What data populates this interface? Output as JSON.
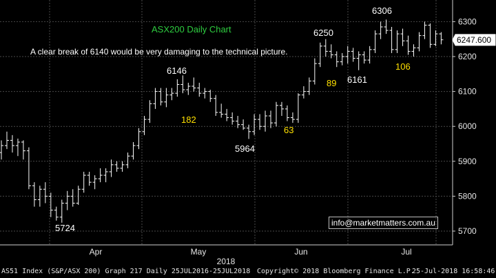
{
  "footer": {
    "left": "AS51 Index (S&P/ASX 200) Graph 217  Daily 25JUL2016-25JUL2018",
    "center": "Copyright© 2018 Bloomberg Finance L.P.",
    "right": "25-Jul-2018 16:58:46"
  },
  "info_box": "info@marketmatters.com.au",
  "colors": {
    "background": "#000000",
    "grid": "#4a4a4a",
    "bars": "#ffffff",
    "title": "#2ecc40",
    "annotation_yellow": "#ffe000",
    "text": "#ffffff"
  },
  "chart_data": {
    "type": "ohlc",
    "title": "ASX200 Daily Chart",
    "subtitle": "A clear break of 6140 would be very damaging to the technical picture.",
    "xlabel": "2018",
    "month_labels": [
      "Apr",
      "May",
      "Jun",
      "Jul"
    ],
    "ylim": [
      5650,
      6350
    ],
    "yticks": [
      5700,
      5800,
      5900,
      6000,
      6100,
      6200,
      6300
    ],
    "last_price": "6247.600",
    "grid": true,
    "annotations": [
      {
        "text": "6306",
        "color": "white",
        "price": 6306
      },
      {
        "text": "6250",
        "color": "white",
        "price": 6250
      },
      {
        "text": "6146",
        "color": "white",
        "price": 6146
      },
      {
        "text": "6161",
        "color": "white",
        "price": 6161
      },
      {
        "text": "5964",
        "color": "white",
        "price": 5964
      },
      {
        "text": "5724",
        "color": "white",
        "price": 5724
      },
      {
        "text": "182",
        "color": "yellow"
      },
      {
        "text": "63",
        "color": "yellow"
      },
      {
        "text": "89",
        "color": "yellow"
      },
      {
        "text": "106",
        "color": "yellow"
      }
    ],
    "bars": [
      {
        "o": 5925,
        "h": 5960,
        "l": 5905,
        "c": 5945
      },
      {
        "o": 5945,
        "h": 5985,
        "l": 5935,
        "c": 5960
      },
      {
        "o": 5960,
        "h": 5975,
        "l": 5925,
        "c": 5945
      },
      {
        "o": 5945,
        "h": 5965,
        "l": 5915,
        "c": 5955
      },
      {
        "o": 5955,
        "h": 5960,
        "l": 5905,
        "c": 5930
      },
      {
        "o": 5930,
        "h": 5940,
        "l": 5820,
        "c": 5830
      },
      {
        "o": 5830,
        "h": 5840,
        "l": 5770,
        "c": 5790
      },
      {
        "o": 5790,
        "h": 5830,
        "l": 5770,
        "c": 5820
      },
      {
        "o": 5820,
        "h": 5840,
        "l": 5780,
        "c": 5800
      },
      {
        "o": 5800,
        "h": 5810,
        "l": 5740,
        "c": 5760
      },
      {
        "o": 5760,
        "h": 5770,
        "l": 5730,
        "c": 5740
      },
      {
        "o": 5740,
        "h": 5790,
        "l": 5724,
        "c": 5780
      },
      {
        "o": 5780,
        "h": 5815,
        "l": 5760,
        "c": 5800
      },
      {
        "o": 5800,
        "h": 5820,
        "l": 5770,
        "c": 5780
      },
      {
        "o": 5780,
        "h": 5830,
        "l": 5775,
        "c": 5820
      },
      {
        "o": 5820,
        "h": 5870,
        "l": 5810,
        "c": 5860
      },
      {
        "o": 5860,
        "h": 5870,
        "l": 5830,
        "c": 5840
      },
      {
        "o": 5840,
        "h": 5860,
        "l": 5820,
        "c": 5850
      },
      {
        "o": 5850,
        "h": 5880,
        "l": 5840,
        "c": 5860
      },
      {
        "o": 5860,
        "h": 5880,
        "l": 5840,
        "c": 5870
      },
      {
        "o": 5870,
        "h": 5905,
        "l": 5855,
        "c": 5890
      },
      {
        "o": 5890,
        "h": 5900,
        "l": 5870,
        "c": 5880
      },
      {
        "o": 5880,
        "h": 5900,
        "l": 5870,
        "c": 5890
      },
      {
        "o": 5890,
        "h": 5925,
        "l": 5880,
        "c": 5915
      },
      {
        "o": 5915,
        "h": 5955,
        "l": 5905,
        "c": 5945
      },
      {
        "o": 5945,
        "h": 5995,
        "l": 5935,
        "c": 5985
      },
      {
        "o": 5985,
        "h": 6030,
        "l": 5975,
        "c": 6020
      },
      {
        "o": 6020,
        "h": 6075,
        "l": 6010,
        "c": 6065
      },
      {
        "o": 6065,
        "h": 6110,
        "l": 6050,
        "c": 6100
      },
      {
        "o": 6100,
        "h": 6110,
        "l": 6060,
        "c": 6070
      },
      {
        "o": 6070,
        "h": 6110,
        "l": 6055,
        "c": 6090
      },
      {
        "o": 6090,
        "h": 6110,
        "l": 6075,
        "c": 6095
      },
      {
        "o": 6095,
        "h": 6135,
        "l": 6085,
        "c": 6120
      },
      {
        "o": 6120,
        "h": 6146,
        "l": 6095,
        "c": 6105
      },
      {
        "o": 6105,
        "h": 6125,
        "l": 6090,
        "c": 6115
      },
      {
        "o": 6115,
        "h": 6140,
        "l": 6100,
        "c": 6110
      },
      {
        "o": 6110,
        "h": 6125,
        "l": 6085,
        "c": 6095
      },
      {
        "o": 6095,
        "h": 6110,
        "l": 6080,
        "c": 6100
      },
      {
        "o": 6100,
        "h": 6105,
        "l": 6070,
        "c": 6080
      },
      {
        "o": 6080,
        "h": 6090,
        "l": 6030,
        "c": 6040
      },
      {
        "o": 6040,
        "h": 6065,
        "l": 6025,
        "c": 6035
      },
      {
        "o": 6035,
        "h": 6050,
        "l": 6015,
        "c": 6025
      },
      {
        "o": 6025,
        "h": 6040,
        "l": 6005,
        "c": 6015
      },
      {
        "o": 6015,
        "h": 6030,
        "l": 5995,
        "c": 6005
      },
      {
        "o": 6005,
        "h": 6020,
        "l": 5990,
        "c": 5995
      },
      {
        "o": 5995,
        "h": 6005,
        "l": 5964,
        "c": 5985
      },
      {
        "o": 5985,
        "h": 6035,
        "l": 5975,
        "c": 6020
      },
      {
        "o": 6020,
        "h": 6035,
        "l": 5990,
        "c": 6000
      },
      {
        "o": 6000,
        "h": 6045,
        "l": 5985,
        "c": 6030
      },
      {
        "o": 6030,
        "h": 6045,
        "l": 5995,
        "c": 6010
      },
      {
        "o": 6010,
        "h": 6070,
        "l": 6000,
        "c": 6060
      },
      {
        "o": 6060,
        "h": 6070,
        "l": 6030,
        "c": 6050
      },
      {
        "o": 6050,
        "h": 6060,
        "l": 6015,
        "c": 6025
      },
      {
        "o": 6025,
        "h": 6040,
        "l": 6010,
        "c": 6020
      },
      {
        "o": 6020,
        "h": 6095,
        "l": 6010,
        "c": 6090
      },
      {
        "o": 6090,
        "h": 6115,
        "l": 6080,
        "c": 6100
      },
      {
        "o": 6100,
        "h": 6140,
        "l": 6090,
        "c": 6130
      },
      {
        "o": 6130,
        "h": 6195,
        "l": 6120,
        "c": 6180
      },
      {
        "o": 6180,
        "h": 6240,
        "l": 6170,
        "c": 6230
      },
      {
        "o": 6230,
        "h": 6250,
        "l": 6200,
        "c": 6215
      },
      {
        "o": 6215,
        "h": 6235,
        "l": 6195,
        "c": 6205
      },
      {
        "o": 6205,
        "h": 6215,
        "l": 6170,
        "c": 6185
      },
      {
        "o": 6185,
        "h": 6210,
        "l": 6175,
        "c": 6200
      },
      {
        "o": 6200,
        "h": 6230,
        "l": 6180,
        "c": 6215
      },
      {
        "o": 6215,
        "h": 6225,
        "l": 6185,
        "c": 6195
      },
      {
        "o": 6195,
        "h": 6215,
        "l": 6161,
        "c": 6205
      },
      {
        "o": 6205,
        "h": 6215,
        "l": 6180,
        "c": 6190
      },
      {
        "o": 6190,
        "h": 6230,
        "l": 6180,
        "c": 6220
      },
      {
        "o": 6220,
        "h": 6275,
        "l": 6210,
        "c": 6265
      },
      {
        "o": 6265,
        "h": 6300,
        "l": 6250,
        "c": 6285
      },
      {
        "o": 6285,
        "h": 6306,
        "l": 6265,
        "c": 6275
      },
      {
        "o": 6275,
        "h": 6285,
        "l": 6210,
        "c": 6220
      },
      {
        "o": 6220,
        "h": 6275,
        "l": 6210,
        "c": 6265
      },
      {
        "o": 6265,
        "h": 6280,
        "l": 6230,
        "c": 6245
      },
      {
        "o": 6245,
        "h": 6260,
        "l": 6205,
        "c": 6215
      },
      {
        "o": 6215,
        "h": 6235,
        "l": 6200,
        "c": 6225
      },
      {
        "o": 6225,
        "h": 6270,
        "l": 6215,
        "c": 6260
      },
      {
        "o": 6260,
        "h": 6300,
        "l": 6250,
        "c": 6290
      },
      {
        "o": 6290,
        "h": 6295,
        "l": 6225,
        "c": 6235
      },
      {
        "o": 6235,
        "h": 6275,
        "l": 6230,
        "c": 6265
      },
      {
        "o": 6265,
        "h": 6270,
        "l": 6235,
        "c": 6248
      }
    ]
  }
}
